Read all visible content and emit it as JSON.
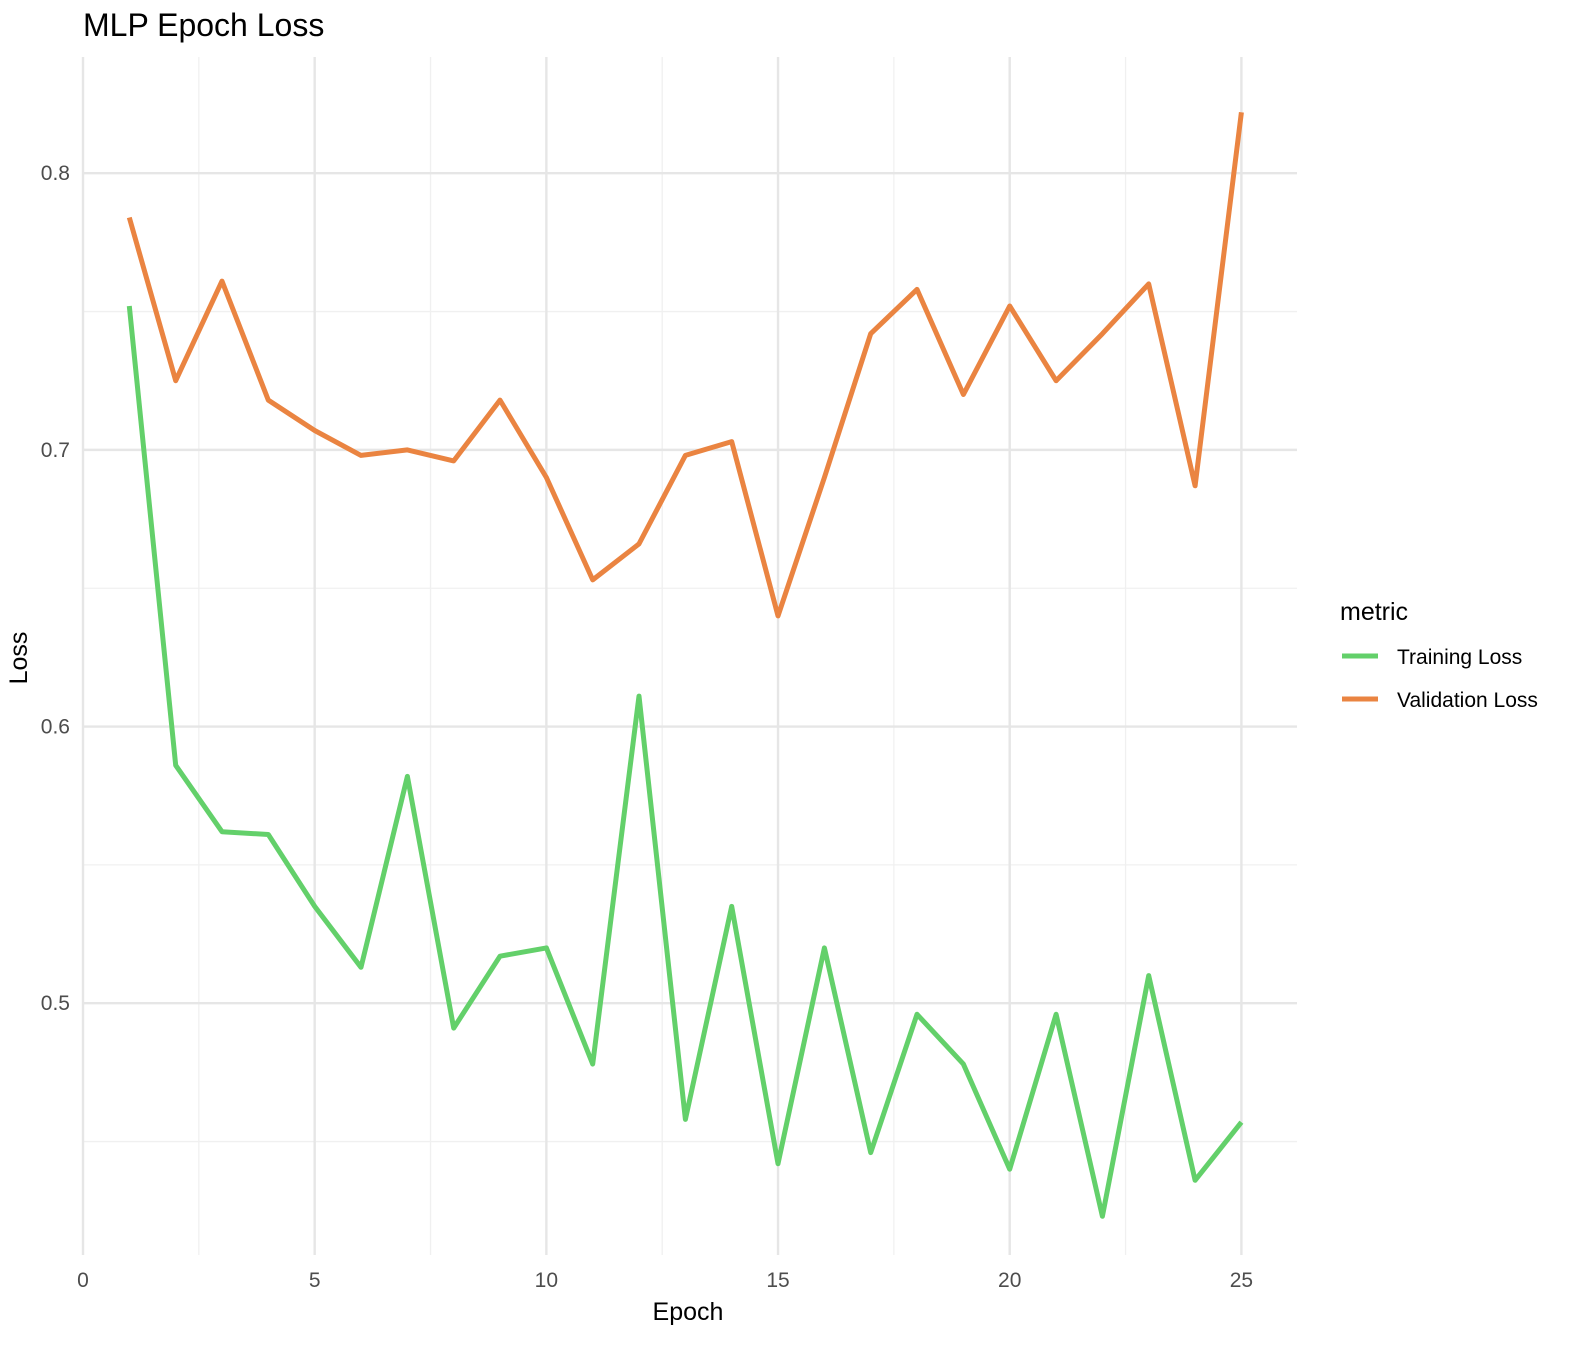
{
  "chart_data": {
    "type": "line",
    "title": "MLP Epoch Loss",
    "xlabel": "Epoch",
    "ylabel": "Loss",
    "xlim": [
      0,
      26.2
    ],
    "ylim": [
      0.409,
      0.842
    ],
    "x_ticks": [
      0,
      5,
      10,
      15,
      20,
      25
    ],
    "x_tick_labels": [
      "0",
      "5",
      "10",
      "15",
      "20",
      "25"
    ],
    "y_ticks": [
      0.5,
      0.6,
      0.7,
      0.8
    ],
    "y_tick_labels": [
      "0.5",
      "0.6",
      "0.7",
      "0.8"
    ],
    "x_minor_ticks": [
      2.5,
      7.5,
      12.5,
      17.5,
      22.5
    ],
    "y_minor_ticks": [
      0.45,
      0.55,
      0.65,
      0.75
    ],
    "grid": true,
    "legend": {
      "title": "metric",
      "position": "right"
    },
    "x": [
      1,
      2,
      3,
      4,
      5,
      6,
      7,
      8,
      9,
      10,
      11,
      12,
      13,
      14,
      15,
      16,
      17,
      18,
      19,
      20,
      21,
      22,
      23,
      24,
      25
    ],
    "series": [
      {
        "name": "Training Loss",
        "color": "#63d06a",
        "values": [
          0.752,
          0.586,
          0.562,
          0.561,
          0.535,
          0.513,
          0.582,
          0.491,
          0.517,
          0.52,
          0.478,
          0.611,
          0.458,
          0.535,
          0.442,
          0.52,
          0.446,
          0.496,
          0.478,
          0.44,
          0.496,
          0.423,
          0.51,
          0.436,
          0.457
        ]
      },
      {
        "name": "Validation Loss",
        "color": "#ea8441",
        "values": [
          0.784,
          0.725,
          0.761,
          0.718,
          0.707,
          0.698,
          0.7,
          0.696,
          0.718,
          0.69,
          0.653,
          0.666,
          0.698,
          0.703,
          0.64,
          0.69,
          0.742,
          0.758,
          0.72,
          0.752,
          0.725,
          0.742,
          0.76,
          0.687,
          0.822
        ]
      }
    ]
  }
}
